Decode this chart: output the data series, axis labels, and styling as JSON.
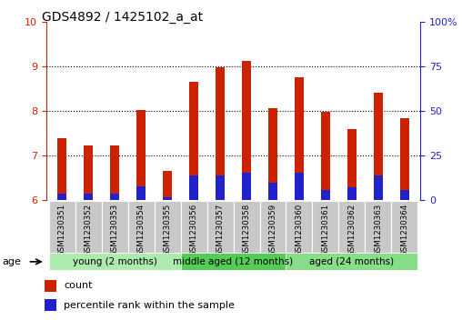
{
  "title": "GDS4892 / 1425102_a_at",
  "samples": [
    "GSM1230351",
    "GSM1230352",
    "GSM1230353",
    "GSM1230354",
    "GSM1230355",
    "GSM1230356",
    "GSM1230357",
    "GSM1230358",
    "GSM1230359",
    "GSM1230360",
    "GSM1230361",
    "GSM1230362",
    "GSM1230363",
    "GSM1230364"
  ],
  "count_values": [
    7.38,
    7.22,
    7.22,
    8.02,
    6.65,
    8.65,
    8.97,
    9.12,
    8.05,
    8.75,
    7.97,
    7.58,
    8.4,
    7.82
  ],
  "percentile_values": [
    0.13,
    0.13,
    0.13,
    0.3,
    0.05,
    0.55,
    0.55,
    0.6,
    0.38,
    0.6,
    0.22,
    0.28,
    0.55,
    0.22
  ],
  "ylim_left": [
    6,
    10
  ],
  "ylim_right": [
    0,
    100
  ],
  "yticks_left": [
    6,
    7,
    8,
    9,
    10
  ],
  "yticks_right": [
    0,
    25,
    50,
    75,
    100
  ],
  "ytick_labels_right": [
    "0",
    "25",
    "50",
    "75",
    "100%"
  ],
  "groups": [
    {
      "label": "young (2 months)",
      "start": 0,
      "end": 4
    },
    {
      "label": "middle aged (12 months)",
      "start": 5,
      "end": 8
    },
    {
      "label": "aged (24 months)",
      "start": 9,
      "end": 13
    }
  ],
  "group_colors": [
    "#AEEAAE",
    "#55CC55",
    "#88DD88"
  ],
  "bar_color_red": "#CC2200",
  "bar_color_blue": "#2222CC",
  "bar_width": 0.35,
  "baseline": 6.0,
  "grid_color": "black",
  "title_color": "black",
  "left_tick_color": "#CC2200",
  "right_tick_color": "#2222CC",
  "legend_count_label": "count",
  "legend_percentile_label": "percentile rank within the sample",
  "age_label": "age",
  "title_fontsize": 10,
  "box_color": "#C8C8C8"
}
